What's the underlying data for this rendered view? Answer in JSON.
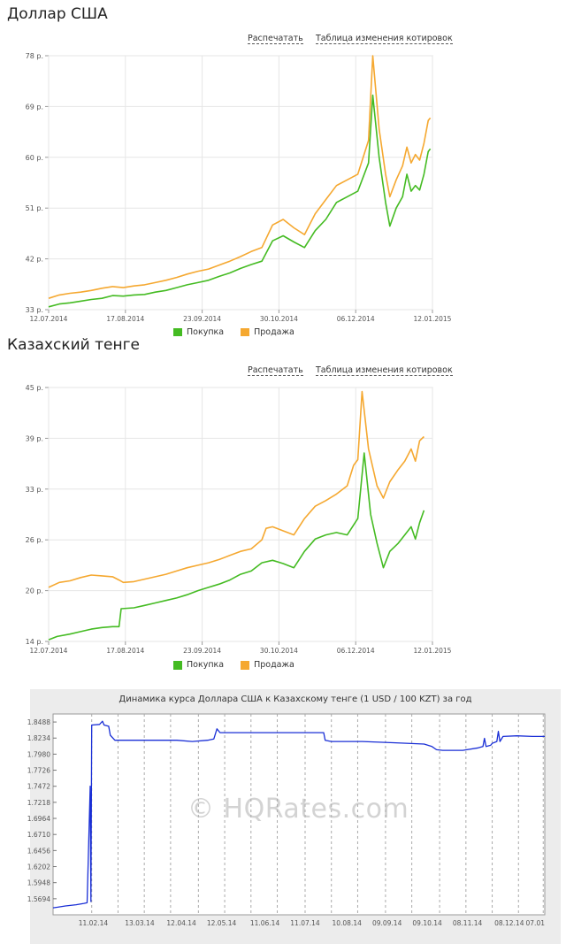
{
  "sections": [
    {
      "title": "Доллар США",
      "print_label": "Распечатать",
      "table_label": "Таблица изменения котировок"
    },
    {
      "title": "Казахский тенге",
      "print_label": "Распечатать",
      "table_label": "Таблица изменения котировок"
    }
  ],
  "colors": {
    "buy": "#44bb22",
    "sell": "#f5a830",
    "hq_line": "#1a2fd6"
  },
  "chart_data": [
    {
      "type": "line",
      "x_ticks": [
        "12.07.2014",
        "17.08.2014",
        "23.09.2014",
        "30.10.2014",
        "06.12.2014",
        "12.01.2015"
      ],
      "y_ticks": [
        "33 р.",
        "42 р.",
        "51 р.",
        "60 р.",
        "69 р.",
        "78 р."
      ],
      "ylim": [
        33,
        78
      ],
      "grid": true,
      "legend_position": "bottom",
      "series": [
        {
          "name": "Покупка",
          "values": [
            [
              0,
              33.5
            ],
            [
              5,
              34.0
            ],
            [
              10,
              34.2
            ],
            [
              15,
              34.5
            ],
            [
              20,
              34.8
            ],
            [
              25,
              35.0
            ],
            [
              30,
              35.5
            ],
            [
              35,
              35.4
            ],
            [
              40,
              35.6
            ],
            [
              45,
              35.7
            ],
            [
              50,
              36.1
            ],
            [
              55,
              36.4
            ],
            [
              60,
              36.9
            ],
            [
              65,
              37.4
            ],
            [
              70,
              37.8
            ],
            [
              75,
              38.2
            ],
            [
              80,
              38.9
            ],
            [
              85,
              39.5
            ],
            [
              90,
              40.3
            ],
            [
              95,
              41.0
            ],
            [
              100,
              41.6
            ],
            [
              105,
              45.2
            ],
            [
              110,
              46.1
            ],
            [
              115,
              45.0
            ],
            [
              120,
              44.0
            ],
            [
              125,
              47.0
            ],
            [
              130,
              49.0
            ],
            [
              135,
              52.0
            ],
            [
              140,
              53.0
            ],
            [
              145,
              54.0
            ],
            [
              150,
              59.0
            ],
            [
              152,
              71.0
            ],
            [
              155,
              60.0
            ],
            [
              158,
              52.0
            ],
            [
              160,
              47.8
            ],
            [
              163,
              51.0
            ],
            [
              166,
              53.0
            ],
            [
              168,
              57.0
            ],
            [
              170,
              54.0
            ],
            [
              172,
              55.0
            ],
            [
              174,
              54.2
            ],
            [
              176,
              57.0
            ],
            [
              178,
              61.0
            ],
            [
              179,
              61.5
            ]
          ]
        },
        {
          "name": "Продажа",
          "values": [
            [
              0,
              35.0
            ],
            [
              5,
              35.6
            ],
            [
              10,
              35.9
            ],
            [
              15,
              36.1
            ],
            [
              20,
              36.4
            ],
            [
              25,
              36.8
            ],
            [
              30,
              37.1
            ],
            [
              35,
              36.9
            ],
            [
              40,
              37.2
            ],
            [
              45,
              37.4
            ],
            [
              50,
              37.8
            ],
            [
              55,
              38.2
            ],
            [
              60,
              38.7
            ],
            [
              65,
              39.3
            ],
            [
              70,
              39.8
            ],
            [
              75,
              40.2
            ],
            [
              80,
              40.9
            ],
            [
              85,
              41.6
            ],
            [
              90,
              42.4
            ],
            [
              95,
              43.3
            ],
            [
              100,
              44.0
            ],
            [
              105,
              48.0
            ],
            [
              110,
              49.0
            ],
            [
              115,
              47.5
            ],
            [
              120,
              46.3
            ],
            [
              125,
              50.0
            ],
            [
              130,
              52.5
            ],
            [
              135,
              55.0
            ],
            [
              140,
              56.0
            ],
            [
              145,
              57.0
            ],
            [
              150,
              63.0
            ],
            [
              152,
              78.0
            ],
            [
              155,
              65.0
            ],
            [
              158,
              57.0
            ],
            [
              160,
              53.0
            ],
            [
              163,
              56.0
            ],
            [
              166,
              58.5
            ],
            [
              168,
              61.8
            ],
            [
              170,
              59.0
            ],
            [
              172,
              60.5
            ],
            [
              174,
              59.5
            ],
            [
              176,
              62.5
            ],
            [
              178,
              66.5
            ],
            [
              179,
              67.0
            ]
          ]
        }
      ]
    },
    {
      "type": "line",
      "x_ticks": [
        "12.07.2014",
        "17.08.2014",
        "23.09.2014",
        "30.10.2014",
        "06.12.2014",
        "12.01.2015"
      ],
      "y_ticks": [
        "14 р.",
        "20 р.",
        "26 р.",
        "33 р.",
        "39 р.",
        "45 р."
      ],
      "ylim": [
        14,
        45
      ],
      "grid": true,
      "legend_position": "bottom",
      "series": [
        {
          "name": "Покупка",
          "values": [
            [
              0,
              14.2
            ],
            [
              4,
              14.6
            ],
            [
              10,
              14.9
            ],
            [
              15,
              15.2
            ],
            [
              20,
              15.5
            ],
            [
              25,
              15.7
            ],
            [
              30,
              15.8
            ],
            [
              33,
              15.8
            ],
            [
              34,
              18.0
            ],
            [
              40,
              18.1
            ],
            [
              45,
              18.4
            ],
            [
              50,
              18.7
            ],
            [
              55,
              19.0
            ],
            [
              60,
              19.3
            ],
            [
              65,
              19.7
            ],
            [
              70,
              20.2
            ],
            [
              75,
              20.6
            ],
            [
              80,
              21.0
            ],
            [
              85,
              21.5
            ],
            [
              90,
              22.2
            ],
            [
              95,
              22.6
            ],
            [
              100,
              23.6
            ],
            [
              105,
              23.9
            ],
            [
              110,
              23.5
            ],
            [
              115,
              23.0
            ],
            [
              120,
              25.0
            ],
            [
              125,
              26.5
            ],
            [
              130,
              27.0
            ],
            [
              135,
              27.3
            ],
            [
              140,
              27.0
            ],
            [
              145,
              29.0
            ],
            [
              148,
              37.0
            ],
            [
              151,
              29.5
            ],
            [
              154,
              26.0
            ],
            [
              157,
              23.0
            ],
            [
              160,
              25.0
            ],
            [
              164,
              26.0
            ],
            [
              167,
              27.0
            ],
            [
              170,
              28.0
            ],
            [
              172,
              26.5
            ],
            [
              174,
              28.5
            ],
            [
              176,
              30.0
            ]
          ]
        },
        {
          "name": "Продажа",
          "values": [
            [
              0,
              20.6
            ],
            [
              5,
              21.2
            ],
            [
              10,
              21.4
            ],
            [
              15,
              21.8
            ],
            [
              20,
              22.1
            ],
            [
              25,
              22.0
            ],
            [
              30,
              21.9
            ],
            [
              33,
              21.5
            ],
            [
              35,
              21.2
            ],
            [
              40,
              21.3
            ],
            [
              45,
              21.6
            ],
            [
              50,
              21.9
            ],
            [
              55,
              22.2
            ],
            [
              60,
              22.6
            ],
            [
              65,
              23.0
            ],
            [
              70,
              23.3
            ],
            [
              75,
              23.6
            ],
            [
              80,
              24.0
            ],
            [
              85,
              24.5
            ],
            [
              90,
              25.0
            ],
            [
              95,
              25.3
            ],
            [
              100,
              26.4
            ],
            [
              102,
              27.8
            ],
            [
              105,
              28.0
            ],
            [
              110,
              27.5
            ],
            [
              115,
              27.0
            ],
            [
              120,
              29.0
            ],
            [
              125,
              30.5
            ],
            [
              130,
              31.2
            ],
            [
              135,
              32.0
            ],
            [
              140,
              33.0
            ],
            [
              143,
              35.5
            ],
            [
              145,
              36.2
            ],
            [
              147,
              44.5
            ],
            [
              150,
              37.5
            ],
            [
              154,
              33.0
            ],
            [
              157,
              31.5
            ],
            [
              160,
              33.5
            ],
            [
              164,
              35.0
            ],
            [
              167,
              36.0
            ],
            [
              170,
              37.5
            ],
            [
              172,
              36.0
            ],
            [
              174,
              38.5
            ],
            [
              176,
              39.0
            ]
          ]
        }
      ]
    },
    {
      "type": "line",
      "title": "Динамика курса Доллара США к Казахскому тенге (1 USD / 100 KZT) за год",
      "watermark": "© HQRates.com",
      "x_ticks": [
        "11.02.14",
        "13.03.14",
        "12.04.14",
        "12.05.14",
        "11.06.14",
        "11.07.14",
        "10.08.14",
        "09.09.14",
        "09.10.14",
        "08.11.14",
        "08.12.14",
        "07.01"
      ],
      "y_ticks": [
        "1.5694",
        "1.5948",
        "1.6202",
        "1.6456",
        "1.6710",
        "1.6964",
        "1.7218",
        "1.7472",
        "1.7726",
        "1.7980",
        "1.8234",
        "1.8488"
      ],
      "ylim": [
        1.544,
        1.8615
      ],
      "grid": true,
      "series": [
        {
          "values": [
            [
              0,
              1.555
            ],
            [
              3,
              1.556
            ],
            [
              8,
              1.558
            ],
            [
              15,
              1.56
            ],
            [
              20,
              1.562
            ],
            [
              22,
              1.563
            ],
            [
              24,
              1.7472
            ],
            [
              24.5,
              1.565
            ],
            [
              25,
              1.844
            ],
            [
              30,
              1.845
            ],
            [
              32,
              1.85
            ],
            [
              33,
              1.844
            ],
            [
              36,
              1.842
            ],
            [
              37,
              1.828
            ],
            [
              40,
              1.82
            ],
            [
              60,
              1.82
            ],
            [
              70,
              1.82
            ],
            [
              80,
              1.82
            ],
            [
              90,
              1.818
            ],
            [
              100,
              1.82
            ],
            [
              104,
              1.822
            ],
            [
              106,
              1.838
            ],
            [
              108,
              1.832
            ],
            [
              120,
              1.832
            ],
            [
              140,
              1.832
            ],
            [
              160,
              1.832
            ],
            [
              175,
              1.832
            ],
            [
              176,
              1.82
            ],
            [
              180,
              1.818
            ],
            [
              200,
              1.818
            ],
            [
              220,
              1.816
            ],
            [
              240,
              1.814
            ],
            [
              245,
              1.81
            ],
            [
              248,
              1.805
            ],
            [
              252,
              1.804
            ],
            [
              265,
              1.804
            ],
            [
              275,
              1.808
            ],
            [
              278,
              1.81
            ],
            [
              279,
              1.823
            ],
            [
              280,
              1.81
            ],
            [
              283,
              1.812
            ],
            [
              284,
              1.815
            ],
            [
              287,
              1.818
            ],
            [
              288,
              1.834
            ],
            [
              289,
              1.818
            ],
            [
              291,
              1.826
            ],
            [
              300,
              1.827
            ],
            [
              310,
              1.826
            ],
            [
              318,
              1.826
            ]
          ]
        }
      ]
    }
  ]
}
